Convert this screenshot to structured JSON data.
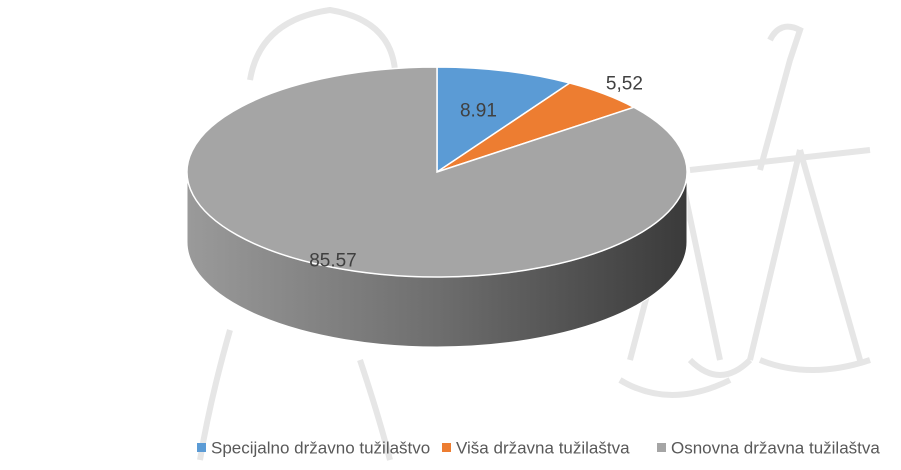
{
  "chart_data": {
    "type": "pie",
    "categories": [
      "Specijalno državno tužilaštvo",
      "Viša državna tužilaštva",
      "Osnovna državna tužilaštva"
    ],
    "values": [
      8.91,
      5.52,
      85.57
    ],
    "value_labels": [
      "8.91",
      "5,52",
      "85.57"
    ],
    "colors": [
      "#5b9bd5",
      "#ed7d31",
      "#a5a5a5"
    ]
  }
}
